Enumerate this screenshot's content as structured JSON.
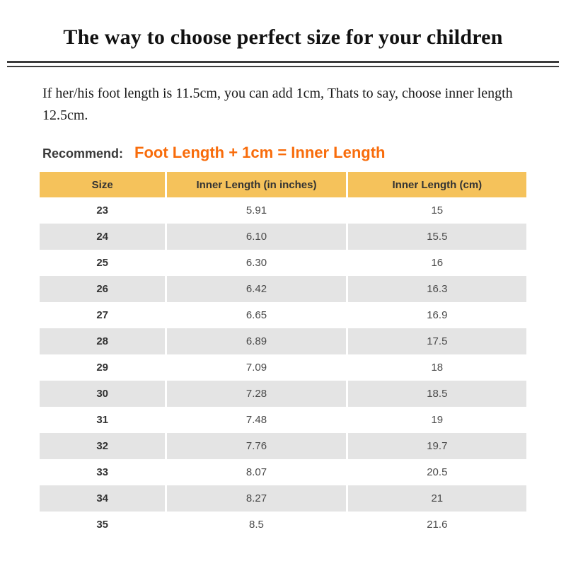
{
  "header": {
    "title": "The way to choose perfect size for your children"
  },
  "intro": {
    "text": "If her/his foot length is 11.5cm, you can add 1cm, Thats to say, choose inner length 12.5cm."
  },
  "recommend": {
    "label": "Recommend:",
    "formula": "Foot Length + 1cm = Inner Length",
    "accent_color": "#F86C0B"
  },
  "table": {
    "header_bg": "#F5C25B",
    "alt_row_bg": "#E4E4E4",
    "headers": [
      "Size",
      "Inner Length (in inches)",
      "Inner Length (cm)"
    ],
    "rows": [
      {
        "size": "23",
        "inches": "5.91",
        "cm": "15"
      },
      {
        "size": "24",
        "inches": "6.10",
        "cm": "15.5"
      },
      {
        "size": "25",
        "inches": "6.30",
        "cm": "16"
      },
      {
        "size": "26",
        "inches": "6.42",
        "cm": "16.3"
      },
      {
        "size": "27",
        "inches": "6.65",
        "cm": "16.9"
      },
      {
        "size": "28",
        "inches": "6.89",
        "cm": "17.5"
      },
      {
        "size": "29",
        "inches": "7.09",
        "cm": "18"
      },
      {
        "size": "30",
        "inches": "7.28",
        "cm": "18.5"
      },
      {
        "size": "31",
        "inches": "7.48",
        "cm": "19"
      },
      {
        "size": "32",
        "inches": "7.76",
        "cm": "19.7"
      },
      {
        "size": "33",
        "inches": "8.07",
        "cm": "20.5"
      },
      {
        "size": "34",
        "inches": "8.27",
        "cm": "21"
      },
      {
        "size": "35",
        "inches": "8.5",
        "cm": "21.6"
      }
    ]
  }
}
